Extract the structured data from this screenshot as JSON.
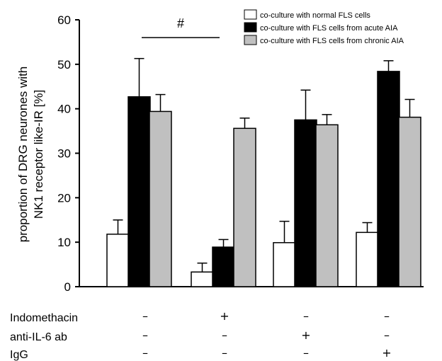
{
  "chart_data": {
    "type": "bar",
    "title": "",
    "xlabel": "",
    "ylabel_lines": [
      "proportion of DRG neurones with",
      "NK1 receptor like-IR [%]"
    ],
    "ylim": [
      0,
      60
    ],
    "yticks": [
      "0",
      "10",
      "20",
      "30",
      "40",
      "50",
      "60"
    ],
    "grid": false,
    "legend_position": "top-right",
    "groups": 4,
    "series": [
      {
        "name": "co-culture with normal FLS cells",
        "color": "#ffffff",
        "values": [
          11.8,
          3.3,
          9.9,
          12.2
        ],
        "errors": [
          3.2,
          2.0,
          4.8,
          2.2
        ]
      },
      {
        "name": "co-culture with FLS cells from acute AIA",
        "color": "#000000",
        "values": [
          42.7,
          8.9,
          37.5,
          48.4
        ],
        "errors": [
          8.6,
          1.7,
          6.7,
          2.4
        ]
      },
      {
        "name": "co-culture with FLS cells from chronic AIA",
        "color": "#c0c0c0",
        "values": [
          39.4,
          35.6,
          36.4,
          38.1
        ],
        "errors": [
          3.8,
          2.3,
          2.3,
          4.0
        ]
      }
    ],
    "conditions": [
      {
        "label": "Indomethacin",
        "signs": [
          "–",
          "+",
          "–",
          "–"
        ]
      },
      {
        "label": "anti-IL-6 ab",
        "signs": [
          "–",
          "–",
          "+",
          "–"
        ]
      },
      {
        "label": "IgG",
        "signs": [
          "–",
          "–",
          "–",
          "+"
        ]
      }
    ],
    "annotation": {
      "text": "#",
      "from_group": 0,
      "to_group": 1,
      "y": 56
    }
  }
}
